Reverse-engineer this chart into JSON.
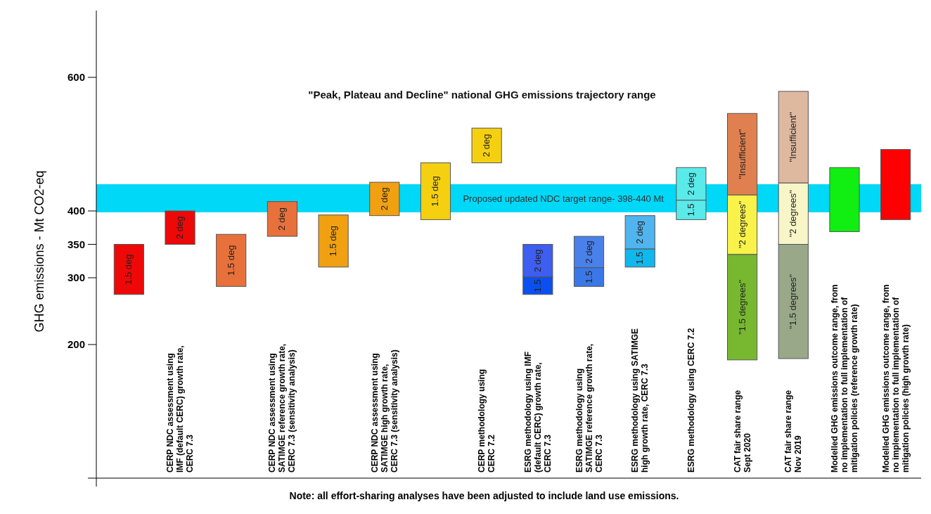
{
  "chart_data": {
    "type": "bar",
    "title": "\"Peak, Plateau and Decline\" national GHG emissions trajectory range",
    "ylabel": "GHG emissions - Mt CO2-eq",
    "categories": [
      null,
      "CERP NDC assessment using\nIMF (default CERC) growth rate,\nCERC 7.3",
      null,
      "CERP NDC assessment using\nSATIMGE reference growth rate,\nCERC 7.3 (sensitivity analysis)",
      null,
      "CERP NDC assessment using\nSATIMGE high growth rate,\nCERC 7.3 (sensitivity analysis)",
      null,
      "CERP methodology using\nCERC 7.2",
      "ESRG methodology using IMF\n(default CERC) growth rate,\nCERC 7.3",
      "ESRG methodology using\nSATIMGE reference growth rate,\nCERC 7.3",
      "ESRG methodology using SATIMGE\nhigh growth rate, CERC 7.3",
      "ESRG methodology using  CERC 7.2",
      "CAT fair share range\nSept 2020",
      "CAT fair share range\nNov 2019",
      "Modelled GHG emissions outcome range, from\nno implementation to full implementation of\nmitigation policies (reference growth rate)",
      "Modelled GHG emissions outcome range, from\nno implementation to full implementation of\nmitigation policies (high growth rate)"
    ],
    "series": [
      {
        "name": "1.5 deg",
        "base": [
          275,
          null,
          287,
          null,
          316,
          null,
          387,
          null,
          null,
          null,
          null,
          null,
          null,
          null,
          null,
          null
        ],
        "values": [
          75,
          null,
          78,
          null,
          78,
          null,
          85,
          null,
          null,
          null,
          null,
          null,
          null,
          null,
          null,
          null
        ],
        "colors": [
          "#ee0808",
          null,
          "#e8703a",
          null,
          "#f0a010",
          null,
          "#f5d010",
          null,
          null,
          null,
          null,
          null,
          null,
          null,
          null,
          null
        ]
      },
      {
        "name": "2 deg",
        "base": [
          null,
          350,
          null,
          362,
          null,
          393,
          null,
          472,
          301,
          315,
          343,
          416,
          null,
          null,
          null,
          null
        ],
        "values": [
          null,
          50,
          null,
          52,
          null,
          50,
          null,
          52,
          49,
          47,
          50,
          49,
          null,
          null,
          null,
          null
        ],
        "colors": [
          null,
          "#ee0808",
          null,
          "#e8703a",
          null,
          "#f0a010",
          null,
          "#f5d010",
          "#3d5ef0",
          "#4a80ea",
          "#50b4ee",
          "#5aeaea",
          null,
          null,
          null,
          null
        ]
      },
      {
        "name": "1.5",
        "base": [
          null,
          null,
          null,
          null,
          null,
          null,
          null,
          null,
          275,
          287,
          316,
          387,
          null,
          null,
          null,
          null
        ],
        "values": [
          null,
          null,
          null,
          null,
          null,
          null,
          null,
          null,
          26,
          28,
          27,
          29,
          null,
          null,
          null,
          null
        ],
        "colors": [
          null,
          null,
          null,
          null,
          null,
          null,
          null,
          null,
          "#0a50f0",
          "#3a78e8",
          "#10b8ee",
          "#5aeaea",
          null,
          null,
          null,
          null
        ]
      },
      {
        "name": "\"1.5 degrees\"",
        "base": [
          null,
          null,
          null,
          null,
          null,
          null,
          null,
          null,
          null,
          null,
          null,
          null,
          177,
          179,
          null,
          null
        ],
        "values": [
          null,
          null,
          null,
          null,
          null,
          null,
          null,
          null,
          null,
          null,
          null,
          null,
          158,
          171,
          null,
          null
        ],
        "colors": [
          null,
          null,
          null,
          null,
          null,
          null,
          null,
          null,
          null,
          null,
          null,
          null,
          "#78b830",
          "#98a888",
          null,
          null
        ]
      },
      {
        "name": "\"2 degrees\"",
        "base": [
          null,
          null,
          null,
          null,
          null,
          null,
          null,
          null,
          null,
          null,
          null,
          null,
          335,
          350,
          null,
          null
        ],
        "values": [
          null,
          null,
          null,
          null,
          null,
          null,
          null,
          null,
          null,
          null,
          null,
          null,
          89,
          92,
          null,
          null
        ],
        "colors": [
          null,
          null,
          null,
          null,
          null,
          null,
          null,
          null,
          null,
          null,
          null,
          null,
          "#f8f24a",
          "#f8f5c8",
          null,
          null
        ]
      },
      {
        "name": "\"Insufficient\"",
        "base": [
          null,
          null,
          null,
          null,
          null,
          null,
          null,
          null,
          null,
          null,
          null,
          null,
          424,
          442,
          null,
          null
        ],
        "values": [
          null,
          null,
          null,
          null,
          null,
          null,
          null,
          null,
          null,
          null,
          null,
          null,
          122,
          137,
          null,
          null
        ],
        "colors": [
          null,
          null,
          null,
          null,
          null,
          null,
          null,
          null,
          null,
          null,
          null,
          null,
          "#e08050",
          "#dfb8a0",
          null,
          null
        ]
      },
      {
        "base": [
          null,
          null,
          null,
          null,
          null,
          null,
          null,
          null,
          null,
          null,
          null,
          null,
          null,
          null,
          369,
          387
        ],
        "values": [
          null,
          null,
          null,
          null,
          null,
          null,
          null,
          null,
          null,
          null,
          null,
          null,
          null,
          null,
          96,
          105
        ],
        "colors": [
          null,
          null,
          null,
          null,
          null,
          null,
          null,
          null,
          null,
          null,
          null,
          null,
          null,
          null,
          "#11ee11",
          "#ff0000"
        ]
      }
    ],
    "ylim": [
      0,
      700
    ],
    "yticks": [
      200,
      300,
      350,
      400,
      600
    ],
    "bands": [
      {
        "axis": "y",
        "from": 398,
        "to": 440,
        "label": "Proposed updated NDC target range- 398-440 Mt",
        "color": "#00d8f8"
      }
    ],
    "annotations": [
      "Note: all effort-sharing analyses have been adjusted to include land use emissions."
    ]
  }
}
